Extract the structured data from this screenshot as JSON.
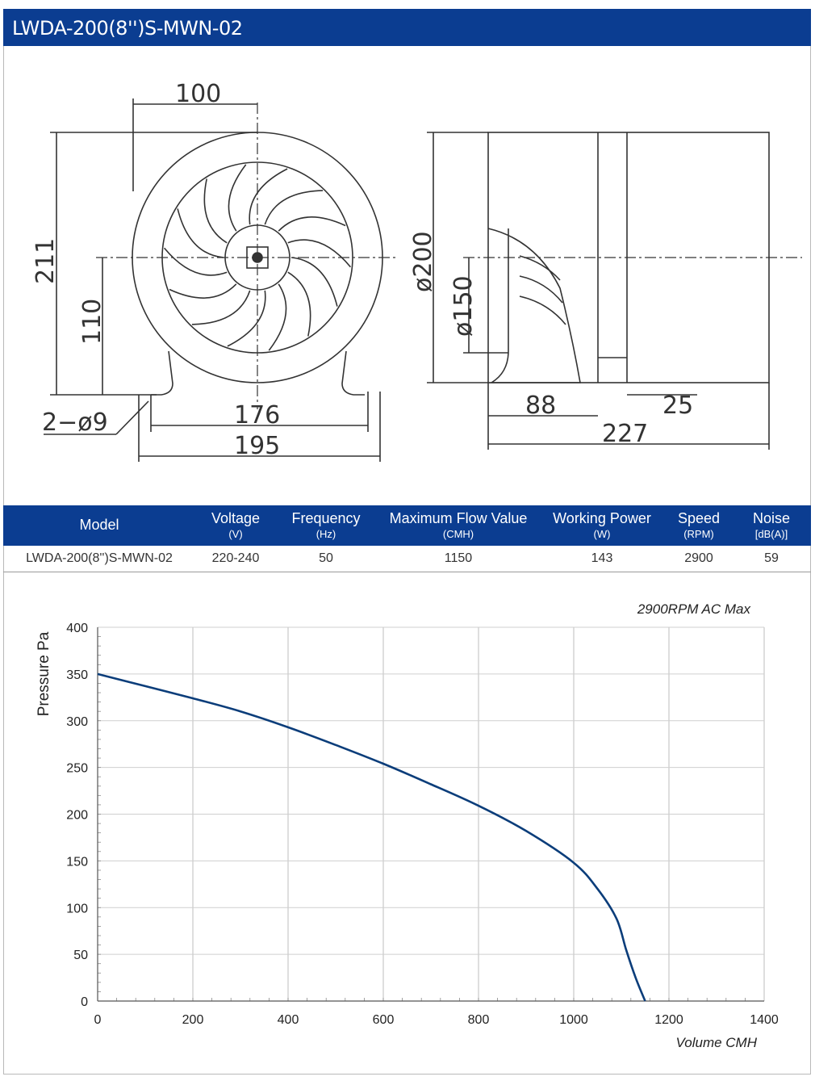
{
  "title": "LWDA-200(8'')S-MWN-02",
  "drawing": {
    "dims": {
      "d100": "100",
      "d211": "211",
      "d110": "110",
      "d2phi9": "2−ø9",
      "d176": "176",
      "d195": "195",
      "d200": "ø200",
      "d150": "ø150",
      "d88": "88",
      "d25": "25",
      "d227": "227"
    }
  },
  "spec_table": {
    "columns": [
      {
        "label": "Model",
        "unit": ""
      },
      {
        "label": "Voltage",
        "unit": "(V)"
      },
      {
        "label": "Frequency",
        "unit": "(Hz)"
      },
      {
        "label": "Maximum Flow Value",
        "unit": "(CMH)"
      },
      {
        "label": "Working Power",
        "unit": "(W)"
      },
      {
        "label": "Speed",
        "unit": "(RPM)"
      },
      {
        "label": "Noise",
        "unit": "[dB(A)]"
      }
    ],
    "row": [
      "LWDA-200(8'')S-MWN-02",
      "220-240",
      "50",
      "1150",
      "143",
      "2900",
      "59"
    ]
  },
  "chart_data": {
    "type": "line",
    "title": "2900RPM AC Max",
    "xlabel": "Volume CMH",
    "ylabel": "Pressure  Pa",
    "xlim": [
      0,
      1400
    ],
    "ylim": [
      0,
      400
    ],
    "xticks": [
      0,
      200,
      400,
      600,
      800,
      1000,
      1200,
      1400
    ],
    "yticks": [
      0,
      50,
      100,
      150,
      200,
      250,
      300,
      350,
      400
    ],
    "grid": true,
    "series_color": "#0b3d7a",
    "series": [
      {
        "x": [
          0,
          100,
          200,
          300,
          400,
          500,
          600,
          700,
          800,
          900,
          1000,
          1050,
          1090,
          1110,
          1130,
          1150
        ],
        "y": [
          350,
          337,
          324,
          310,
          293,
          274,
          254,
          232,
          209,
          182,
          148,
          120,
          88,
          55,
          25,
          0
        ]
      }
    ]
  }
}
